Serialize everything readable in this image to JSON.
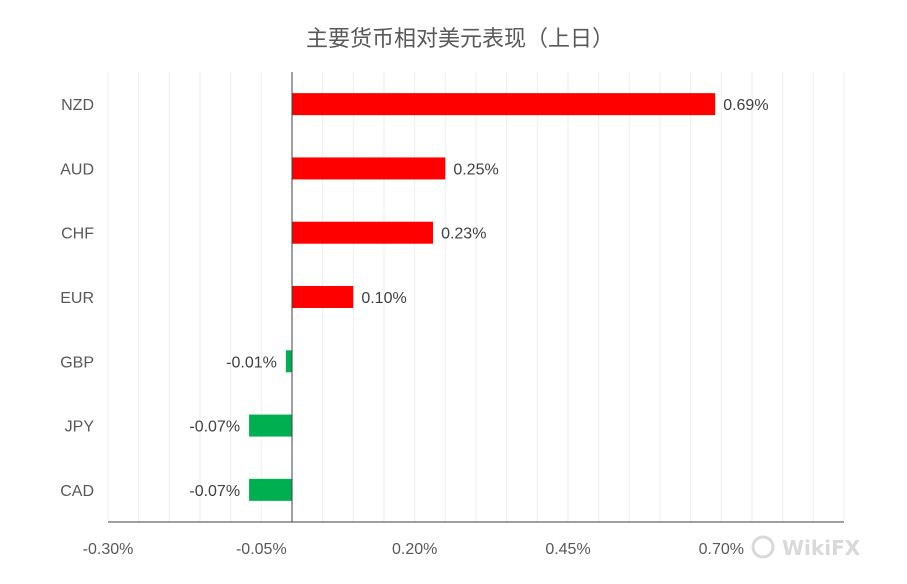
{
  "chart_data": {
    "type": "bar",
    "orientation": "horizontal",
    "title": "主要货币相对美元表现（上日）",
    "categories": [
      "NZD",
      "AUD",
      "CHF",
      "EUR",
      "GBP",
      "JPY",
      "CAD"
    ],
    "values": [
      0.69,
      0.25,
      0.23,
      0.1,
      -0.01,
      -0.07,
      -0.07
    ],
    "data_labels": [
      "0.69%",
      "0.25%",
      "0.23%",
      "0.10%",
      "-0.01%",
      "-0.07%",
      "-0.07%"
    ],
    "xlim": [
      -0.3,
      0.9
    ],
    "x_ticks": [
      -0.3,
      -0.05,
      0.2,
      0.45,
      0.7
    ],
    "x_tick_labels": [
      "-0.30%",
      "-0.05%",
      "0.20%",
      "0.45%",
      "0.70%"
    ],
    "xlabel": "",
    "ylabel": "",
    "grid": "vertical",
    "legend": "none",
    "colors": {
      "positive": "#ff0000",
      "negative": "#00b050",
      "grid": "#eeeeee",
      "axis": "#404040",
      "text": "#595959"
    }
  },
  "watermark": {
    "text": "WikiFX"
  }
}
